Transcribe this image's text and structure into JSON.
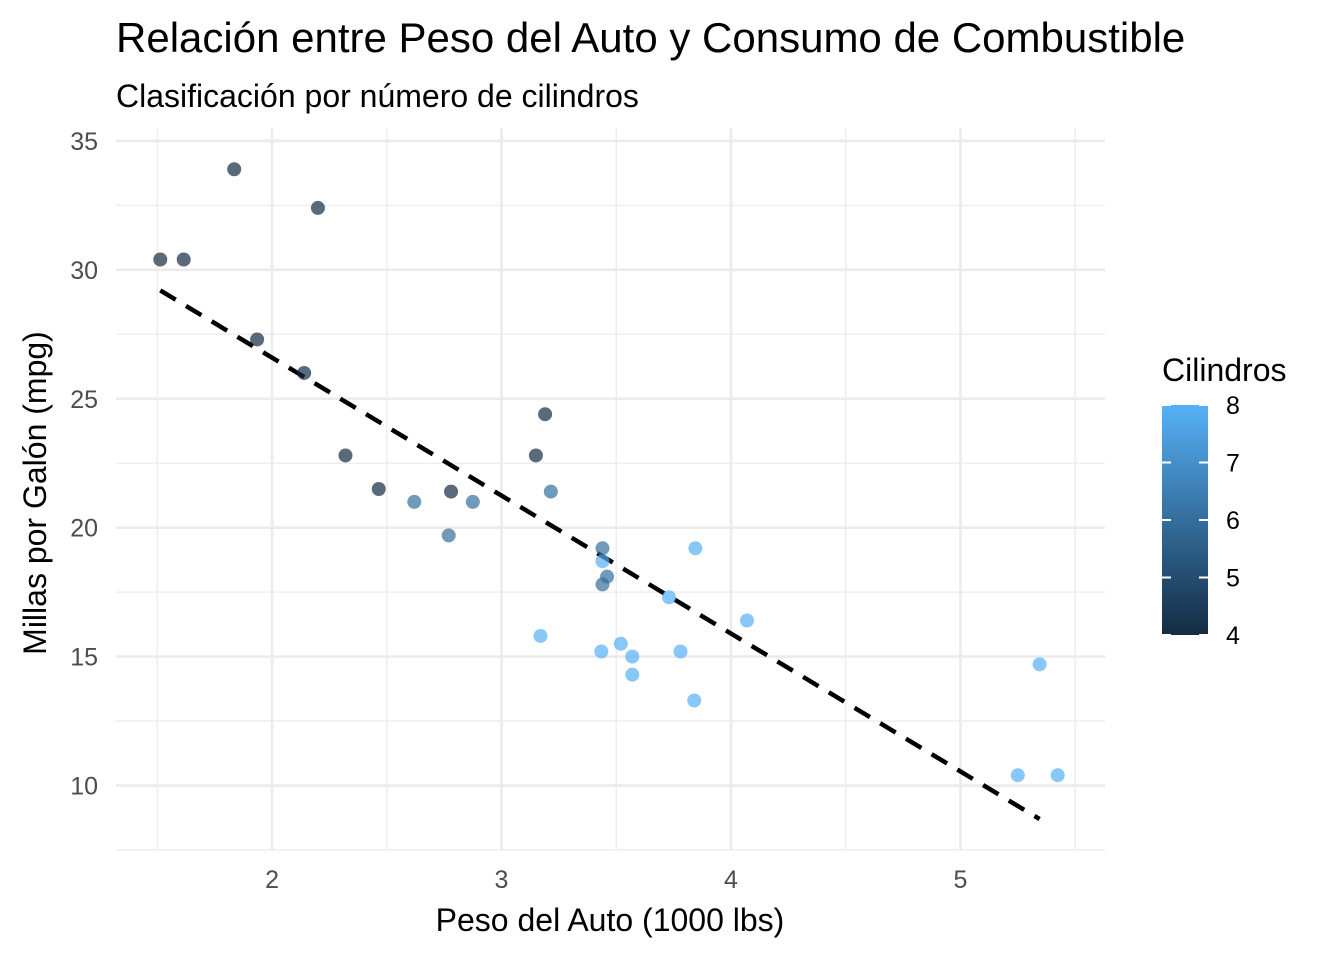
{
  "chart_data": {
    "type": "scatter",
    "title": "Relación entre Peso del Auto y Consumo de Combustible",
    "subtitle": "Clasificación por número de cilindros",
    "xlabel": "Peso del Auto (1000 lbs)",
    "ylabel": "Millas por Galón (mpg)",
    "xlim": [
      1.32,
      5.63
    ],
    "ylim": [
      7.5,
      35.5
    ],
    "x_ticks": [
      2,
      3,
      4,
      5
    ],
    "y_ticks": [
      10,
      15,
      20,
      25,
      30,
      35
    ],
    "grid": true,
    "legend": {
      "title": "Cilindros",
      "position": "right",
      "type": "colorbar",
      "min": 4,
      "max": 8,
      "ticks": [
        4,
        5,
        6,
        7,
        8
      ],
      "low_color": "#132B43",
      "high_color": "#56B1F7"
    },
    "trend_line": {
      "style": "dashed",
      "color": "#000000",
      "from": [
        1.513,
        29.2
      ],
      "to": [
        5.345,
        8.7
      ]
    },
    "points": [
      {
        "x": 2.62,
        "y": 21.0,
        "cyl": 6
      },
      {
        "x": 2.875,
        "y": 21.0,
        "cyl": 6
      },
      {
        "x": 2.32,
        "y": 22.8,
        "cyl": 4
      },
      {
        "x": 3.215,
        "y": 21.4,
        "cyl": 6
      },
      {
        "x": 3.44,
        "y": 18.7,
        "cyl": 8
      },
      {
        "x": 3.46,
        "y": 18.1,
        "cyl": 6
      },
      {
        "x": 3.57,
        "y": 14.3,
        "cyl": 8
      },
      {
        "x": 3.19,
        "y": 24.4,
        "cyl": 4
      },
      {
        "x": 3.15,
        "y": 22.8,
        "cyl": 4
      },
      {
        "x": 3.44,
        "y": 19.2,
        "cyl": 6
      },
      {
        "x": 3.44,
        "y": 17.8,
        "cyl": 6
      },
      {
        "x": 4.07,
        "y": 16.4,
        "cyl": 8
      },
      {
        "x": 3.73,
        "y": 17.3,
        "cyl": 8
      },
      {
        "x": 3.78,
        "y": 15.2,
        "cyl": 8
      },
      {
        "x": 5.25,
        "y": 10.4,
        "cyl": 8
      },
      {
        "x": 5.424,
        "y": 10.4,
        "cyl": 8
      },
      {
        "x": 5.345,
        "y": 14.7,
        "cyl": 8
      },
      {
        "x": 2.2,
        "y": 32.4,
        "cyl": 4
      },
      {
        "x": 1.615,
        "y": 30.4,
        "cyl": 4
      },
      {
        "x": 1.835,
        "y": 33.9,
        "cyl": 4
      },
      {
        "x": 2.465,
        "y": 21.5,
        "cyl": 4
      },
      {
        "x": 3.52,
        "y": 15.5,
        "cyl": 8
      },
      {
        "x": 3.435,
        "y": 15.2,
        "cyl": 8
      },
      {
        "x": 3.84,
        "y": 13.3,
        "cyl": 8
      },
      {
        "x": 3.845,
        "y": 19.2,
        "cyl": 8
      },
      {
        "x": 1.935,
        "y": 27.3,
        "cyl": 4
      },
      {
        "x": 2.14,
        "y": 26.0,
        "cyl": 4
      },
      {
        "x": 1.513,
        "y": 30.4,
        "cyl": 4
      },
      {
        "x": 3.17,
        "y": 15.8,
        "cyl": 8
      },
      {
        "x": 2.77,
        "y": 19.7,
        "cyl": 6
      },
      {
        "x": 3.57,
        "y": 15.0,
        "cyl": 8
      },
      {
        "x": 2.78,
        "y": 21.4,
        "cyl": 4
      }
    ]
  }
}
